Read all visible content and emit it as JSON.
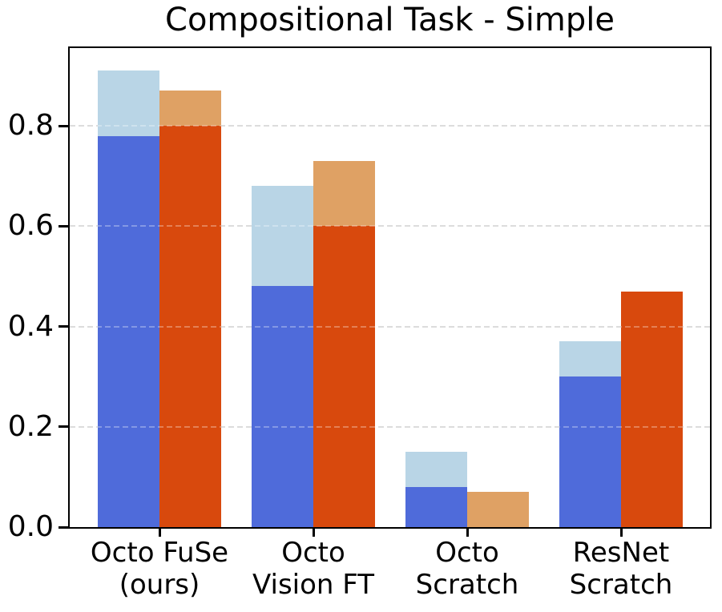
{
  "chart_data": {
    "type": "bar",
    "title": "Compositional Task - Simple",
    "xlabel": "",
    "ylabel": "",
    "categories": [
      {
        "label": "Octo FuSe (ours)",
        "lines": [
          "Octo FuSe",
          "(ours)"
        ]
      },
      {
        "label": "Octo Vision FT",
        "lines": [
          "Octo",
          "Vision FT"
        ]
      },
      {
        "label": "Octo Scratch",
        "lines": [
          "Octo",
          "Scratch"
        ]
      },
      {
        "label": "ResNet Scratch",
        "lines": [
          "ResNet",
          "Scratch"
        ]
      }
    ],
    "series": [
      {
        "name": "blue-light-overlay",
        "color": "#B9D5E6",
        "group": "blue",
        "layer": "back",
        "values": [
          0.91,
          0.68,
          0.15,
          0.37
        ]
      },
      {
        "name": "blue-solid",
        "color": "#4F6BDA",
        "group": "blue",
        "layer": "front",
        "values": [
          0.78,
          0.48,
          0.08,
          0.3
        ]
      },
      {
        "name": "orange-light-overlay",
        "color": "#DFA164",
        "group": "orange",
        "layer": "back",
        "values": [
          0.87,
          0.73,
          0.07,
          0.47
        ]
      },
      {
        "name": "orange-solid",
        "color": "#D8490D",
        "group": "orange",
        "layer": "front",
        "values": [
          0.8,
          0.6,
          0.0,
          0.47
        ]
      }
    ],
    "ylim": [
      0,
      0.955
    ],
    "yticks": {
      "values": [
        0.0,
        0.2,
        0.4,
        0.6,
        0.8
      ],
      "labels": [
        "0.0",
        "0.2",
        "0.4",
        "0.6",
        "0.8"
      ]
    },
    "gridlines": {
      "values": [
        0.2,
        0.4,
        0.6,
        0.8
      ],
      "style": "dashed",
      "color": "#CDCDCD",
      "on": true
    },
    "legend": "none",
    "colors": {
      "background": "#FFFFFF",
      "spine": "#000000",
      "text": "#000000",
      "blue_solid": "#4F6BDA",
      "blue_light": "#B9D5E6",
      "orange_solid": "#D8490D",
      "orange_light": "#DFA164"
    }
  }
}
